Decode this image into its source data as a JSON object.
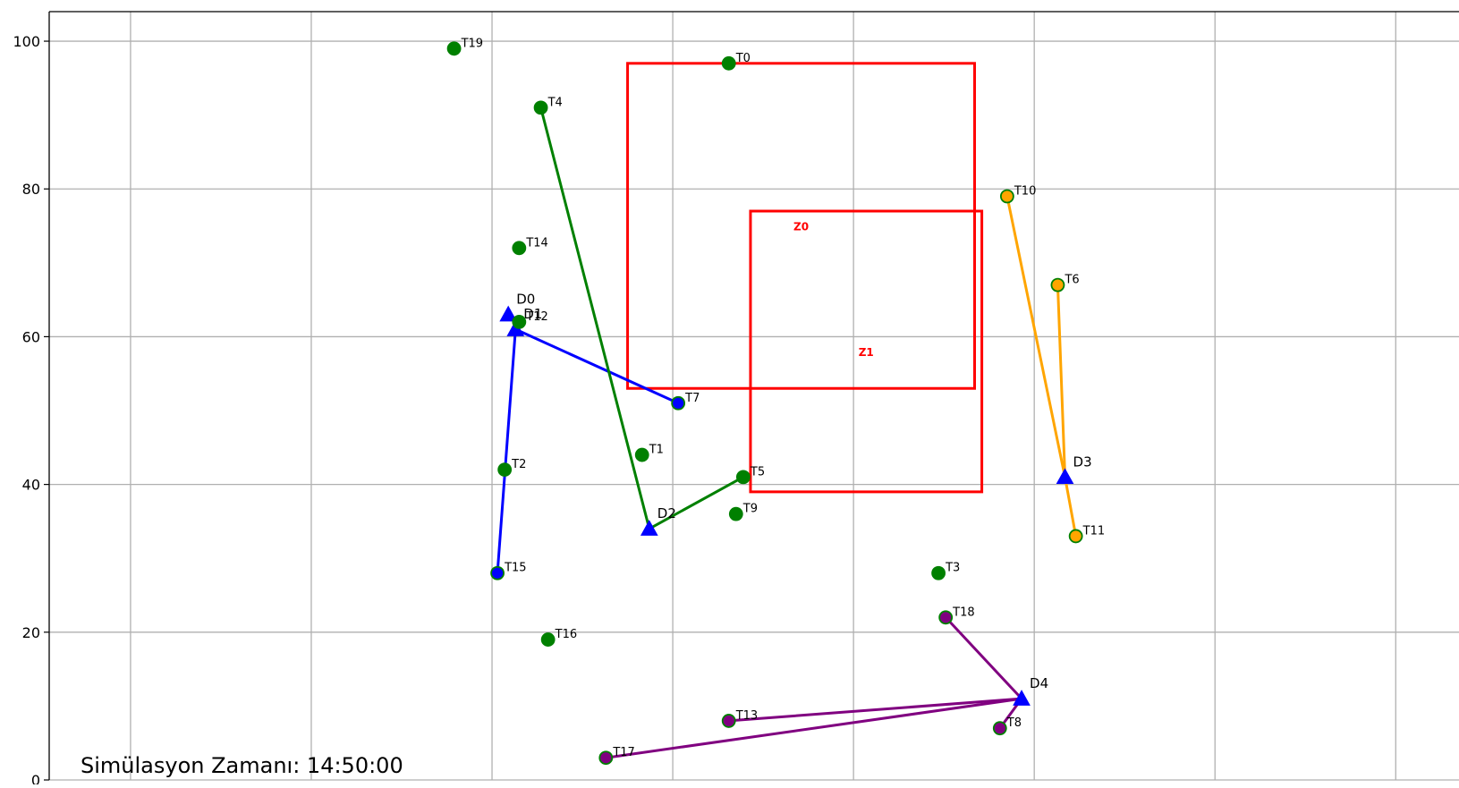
{
  "chart_data": {
    "type": "scatter",
    "xlim": [
      -2,
      76
    ],
    "ylim": [
      0,
      104
    ],
    "y_ticks": [
      0,
      20,
      40,
      60,
      80,
      100
    ],
    "x_grid": [
      2.5,
      12.5,
      22.5,
      32.5,
      42.5,
      52.5,
      62.5,
      72.5
    ],
    "grid": true,
    "sim_time_label": "Simülasyon Zamanı: 14:50:00",
    "colors": {
      "grid": "#b0b0b0",
      "zone": "#ff0000",
      "drone": "#0000ff",
      "task_default": "#008000",
      "task_edge": "#008000"
    },
    "zones": [
      {
        "name": "Z0",
        "x0": 30,
        "y0": 53,
        "x1": 49.2,
        "y1": 97
      },
      {
        "name": "Z1",
        "x0": 36.8,
        "y0": 39,
        "x1": 49.6,
        "y1": 77
      }
    ],
    "drones": [
      {
        "name": "D0",
        "x": 23.4,
        "y": 63
      },
      {
        "name": "D1",
        "x": 23.8,
        "y": 61
      },
      {
        "name": "D2",
        "x": 31.2,
        "y": 34
      },
      {
        "name": "D3",
        "x": 54.2,
        "y": 41
      },
      {
        "name": "D4",
        "x": 51.8,
        "y": 11
      }
    ],
    "tasks": [
      {
        "name": "T0",
        "x": 35.6,
        "y": 97,
        "color": "#008000"
      },
      {
        "name": "T1",
        "x": 30.8,
        "y": 44,
        "color": "#008000"
      },
      {
        "name": "T2",
        "x": 23.2,
        "y": 42,
        "color": "#008000"
      },
      {
        "name": "T3",
        "x": 47.2,
        "y": 28,
        "color": "#008000"
      },
      {
        "name": "T4",
        "x": 25.2,
        "y": 91,
        "color": "#008000"
      },
      {
        "name": "T5",
        "x": 36.4,
        "y": 41,
        "color": "#008000"
      },
      {
        "name": "T6",
        "x": 53.8,
        "y": 67,
        "color": "#ffa500"
      },
      {
        "name": "T7",
        "x": 32.8,
        "y": 51,
        "color": "#0000ff"
      },
      {
        "name": "T8",
        "x": 50.6,
        "y": 7,
        "color": "#800080"
      },
      {
        "name": "T9",
        "x": 36.0,
        "y": 36,
        "color": "#008000"
      },
      {
        "name": "T10",
        "x": 51.0,
        "y": 79,
        "color": "#ffa500"
      },
      {
        "name": "T11",
        "x": 54.8,
        "y": 33,
        "color": "#ffa500"
      },
      {
        "name": "T12",
        "x": 24.0,
        "y": 62,
        "color": "#008000"
      },
      {
        "name": "T13",
        "x": 35.6,
        "y": 8,
        "color": "#800080"
      },
      {
        "name": "T14",
        "x": 24.0,
        "y": 72,
        "color": "#008000"
      },
      {
        "name": "T15",
        "x": 22.8,
        "y": 28,
        "color": "#0000ff"
      },
      {
        "name": "T16",
        "x": 25.6,
        "y": 19,
        "color": "#008000"
      },
      {
        "name": "T17",
        "x": 28.8,
        "y": 3,
        "color": "#800080"
      },
      {
        "name": "T18",
        "x": 47.6,
        "y": 22,
        "color": "#800080"
      },
      {
        "name": "T19",
        "x": 20.4,
        "y": 99,
        "color": "#008000"
      }
    ],
    "routes": [
      {
        "drone": "D1",
        "task": "T7",
        "color": "#0000ff"
      },
      {
        "drone": "D1",
        "task": "T15",
        "color": "#0000ff"
      },
      {
        "drone": "D2",
        "task": "T4",
        "color": "#008000"
      },
      {
        "drone": "D2",
        "task": "T5",
        "color": "#008000"
      },
      {
        "drone": "D3",
        "task": "T10",
        "color": "#ffa500"
      },
      {
        "drone": "D3",
        "task": "T6",
        "color": "#ffa500"
      },
      {
        "drone": "D3",
        "task": "T11",
        "color": "#ffa500"
      },
      {
        "drone": "D4",
        "task": "T18",
        "color": "#800080"
      },
      {
        "drone": "D4",
        "task": "T13",
        "color": "#800080"
      },
      {
        "drone": "D4",
        "task": "T17",
        "color": "#800080"
      },
      {
        "drone": "D4",
        "task": "T8",
        "color": "#800080"
      }
    ]
  }
}
